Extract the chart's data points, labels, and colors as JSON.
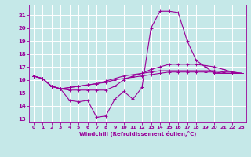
{
  "xlabel": "Windchill (Refroidissement éolien,°C)",
  "background_color": "#c5e8e8",
  "grid_color": "#ffffff",
  "line_color": "#990099",
  "xlim": [
    -0.5,
    23.5
  ],
  "ylim": [
    12.7,
    21.8
  ],
  "xticks": [
    0,
    1,
    2,
    3,
    4,
    5,
    6,
    7,
    8,
    9,
    10,
    11,
    12,
    13,
    14,
    15,
    16,
    17,
    18,
    19,
    20,
    21,
    22,
    23
  ],
  "yticks": [
    13,
    14,
    15,
    16,
    17,
    18,
    19,
    20,
    21
  ],
  "curves": [
    [
      16.3,
      16.1,
      15.5,
      15.3,
      14.4,
      14.3,
      14.4,
      13.1,
      13.2,
      14.5,
      15.1,
      14.5,
      15.4,
      20.0,
      21.3,
      21.3,
      21.2,
      19.0,
      17.5,
      17.0,
      16.5,
      16.5,
      16.5,
      16.5
    ],
    [
      16.3,
      16.1,
      15.5,
      15.3,
      15.2,
      15.2,
      15.2,
      15.2,
      15.2,
      15.5,
      16.0,
      16.3,
      16.5,
      16.8,
      17.0,
      17.2,
      17.2,
      17.2,
      17.2,
      17.1,
      17.0,
      16.8,
      16.6,
      16.5
    ],
    [
      16.3,
      16.1,
      15.5,
      15.3,
      15.4,
      15.5,
      15.6,
      15.7,
      15.8,
      16.0,
      16.1,
      16.2,
      16.3,
      16.4,
      16.5,
      16.6,
      16.6,
      16.6,
      16.6,
      16.6,
      16.6,
      16.5,
      16.5,
      16.5
    ],
    [
      16.3,
      16.1,
      15.5,
      15.3,
      15.4,
      15.5,
      15.6,
      15.7,
      15.9,
      16.1,
      16.3,
      16.4,
      16.5,
      16.6,
      16.7,
      16.7,
      16.7,
      16.7,
      16.7,
      16.7,
      16.7,
      16.6,
      16.6,
      16.5
    ]
  ]
}
